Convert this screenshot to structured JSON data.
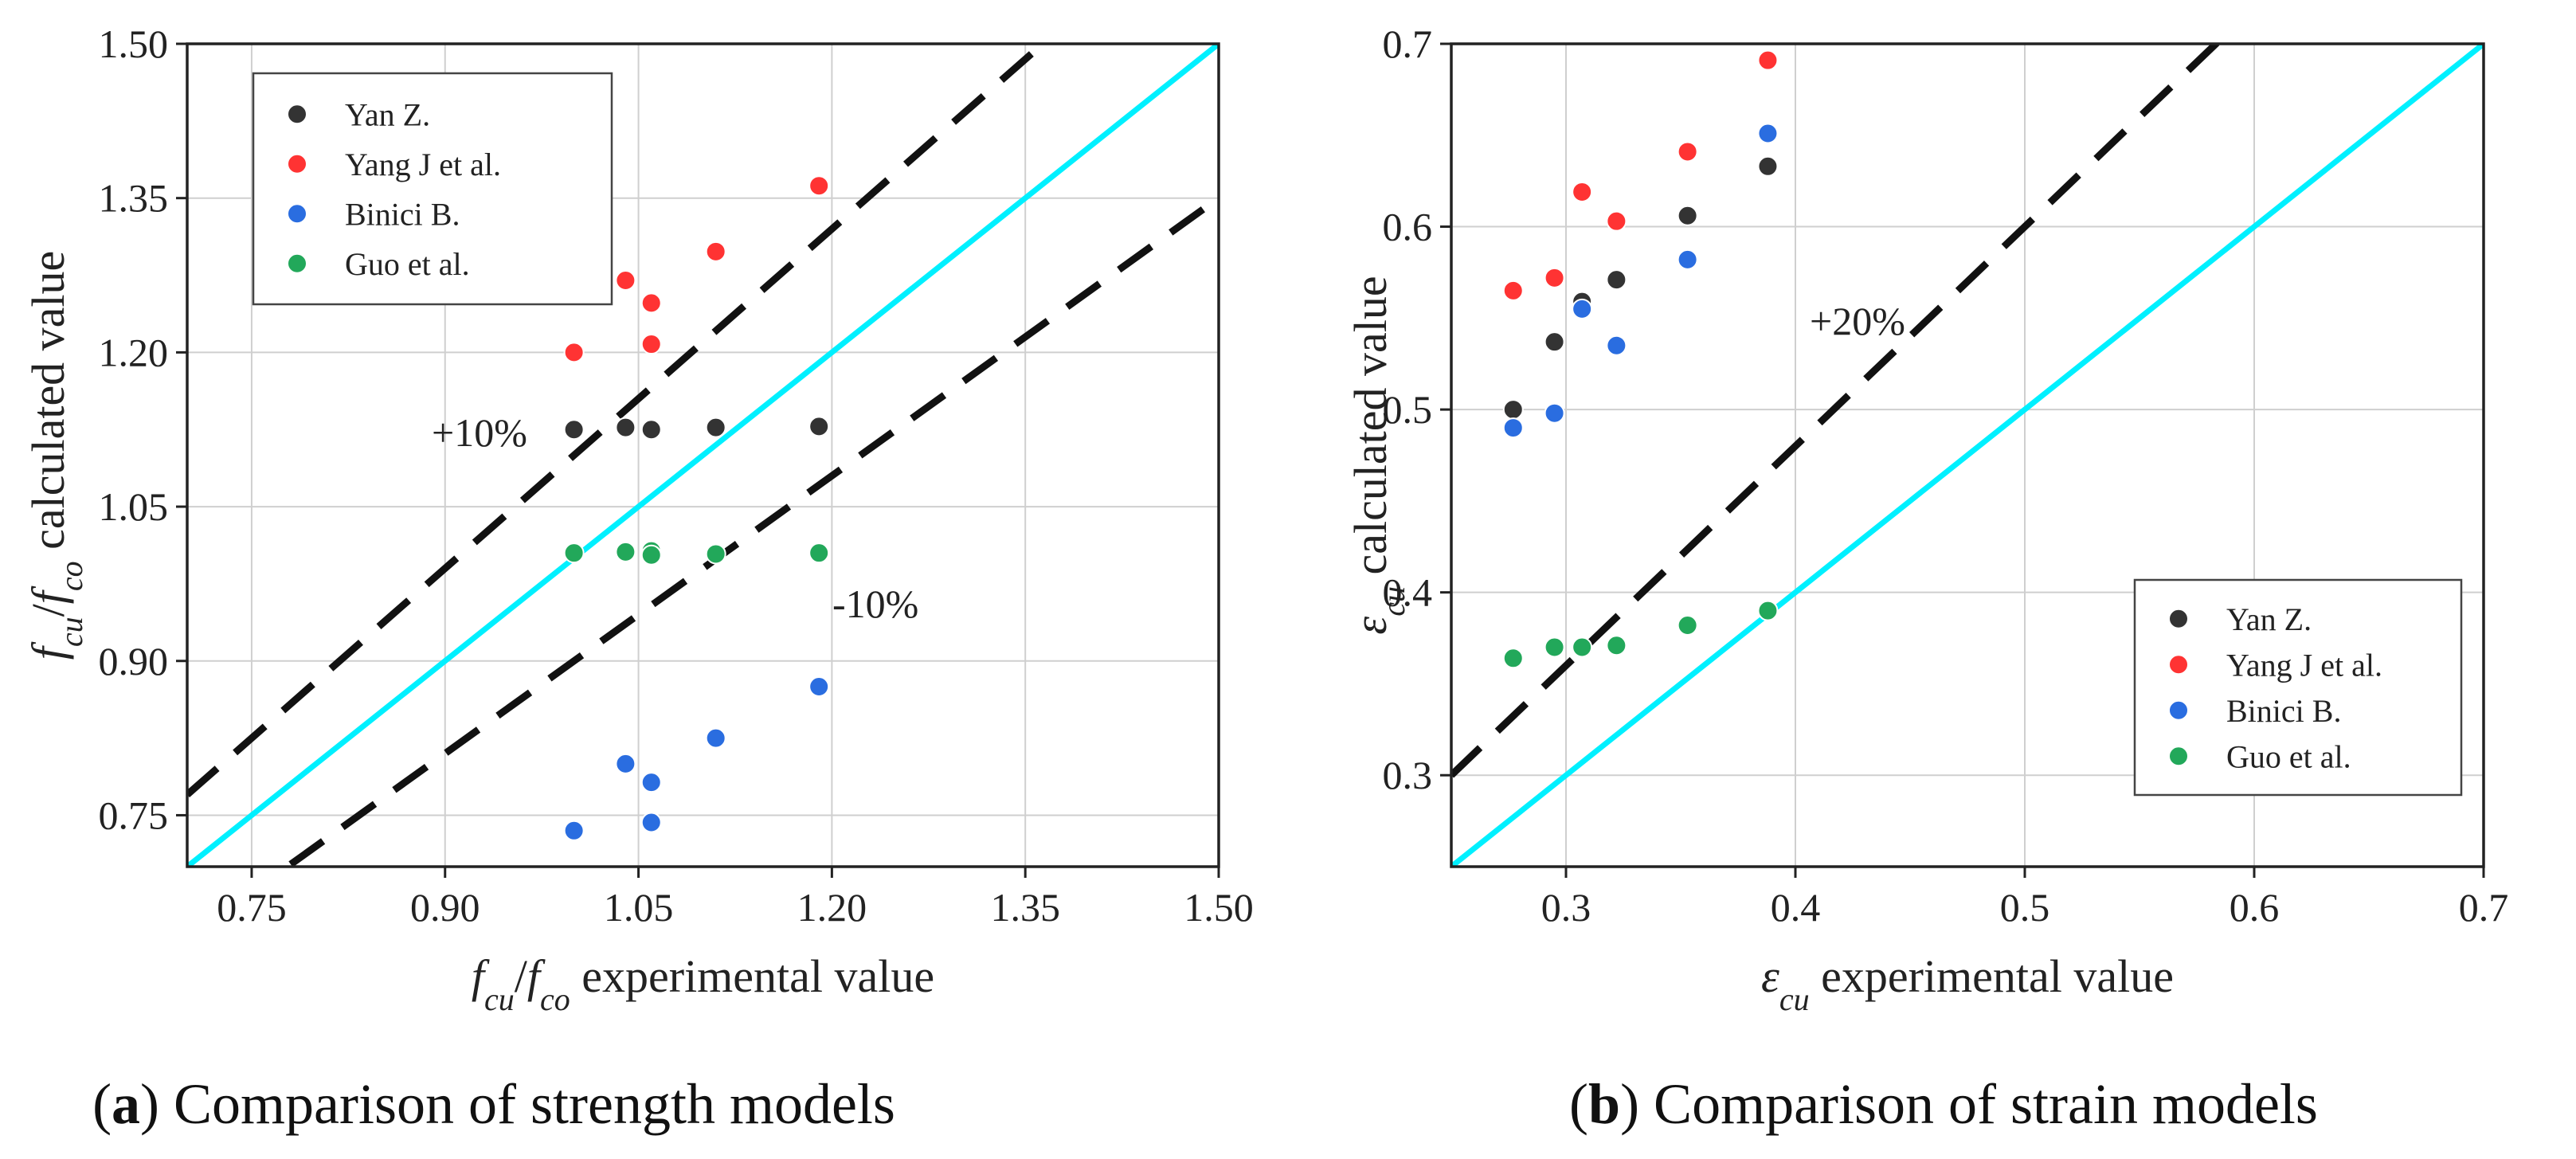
{
  "chart_data": [
    {
      "type": "scatter",
      "id": "a",
      "xlim": [
        0.7,
        1.5
      ],
      "ylim": [
        0.7,
        1.5
      ],
      "xticks": [
        "0.75",
        "0.90",
        "1.05",
        "1.20",
        "1.35",
        "1.50"
      ],
      "yticks": [
        "0.75",
        "0.90",
        "1.05",
        "1.20",
        "1.35",
        "1.50"
      ],
      "xticks_values": [
        0.75,
        0.9,
        1.05,
        1.2,
        1.35,
        1.5
      ],
      "yticks_values": [
        0.75,
        0.9,
        1.05,
        1.2,
        1.35,
        1.5
      ],
      "xlabel": {
        "var": "f",
        "sub1": "cu",
        "slash": "/",
        "var2": "f",
        "sub2": "co",
        "rest": " experimental value"
      },
      "ylabel": {
        "var": "f",
        "sub1": "cu",
        "slash": "/",
        "var2": "f",
        "sub2": "co",
        "rest": " calculated value"
      },
      "grid": true,
      "legend_position": "top-left",
      "reference_line": {
        "label": "y = x",
        "color": "#00f0ff"
      },
      "bounds": [
        {
          "label": "+10%",
          "factor": 1.1
        },
        {
          "label": "-10%",
          "factor": 0.9
        }
      ],
      "annotations": [
        "+10%",
        "-10%"
      ],
      "series": [
        {
          "name": "Yan Z.",
          "color": "#333333",
          "x": [
            1.0,
            1.04,
            1.06,
            1.11,
            1.19
          ],
          "y": [
            1.125,
            1.127,
            1.125,
            1.127,
            1.128
          ]
        },
        {
          "name": "Yang J et al.",
          "color": "#ff3333",
          "x": [
            1.0,
            1.04,
            1.06,
            1.06,
            1.11,
            1.19
          ],
          "y": [
            1.2,
            1.27,
            1.248,
            1.208,
            1.298,
            1.362
          ]
        },
        {
          "name": "Binici B.",
          "color": "#2a6de0",
          "x": [
            1.0,
            1.04,
            1.06,
            1.06,
            1.11,
            1.19
          ],
          "y": [
            0.735,
            0.8,
            0.782,
            0.743,
            0.825,
            0.875
          ]
        },
        {
          "name": "Guo et al.",
          "color": "#22a85a",
          "x": [
            1.0,
            1.04,
            1.06,
            1.06,
            1.11,
            1.19
          ],
          "y": [
            1.005,
            1.006,
            1.007,
            1.003,
            1.004,
            1.005
          ]
        }
      ]
    },
    {
      "type": "scatter",
      "id": "b",
      "xlim": [
        0.25,
        0.7
      ],
      "ylim": [
        0.25,
        0.7
      ],
      "xticks": [
        "0.3",
        "0.4",
        "0.5",
        "0.6",
        "0.7"
      ],
      "yticks": [
        "0.3",
        "0.4",
        "0.5",
        "0.6",
        "0.7"
      ],
      "xticks_values": [
        0.3,
        0.4,
        0.5,
        0.6,
        0.7
      ],
      "yticks_values": [
        0.3,
        0.4,
        0.5,
        0.6,
        0.7
      ],
      "xlabel": {
        "var": "ε",
        "sub1": "cu",
        "rest": " experimental value"
      },
      "ylabel": {
        "var": "ε",
        "sub1": "cu",
        "rest": " calculated value"
      },
      "grid": true,
      "legend_position": "bottom-right",
      "reference_line": {
        "label": "y = x",
        "color": "#00f0ff"
      },
      "bounds": [
        {
          "label": "+20%",
          "factor": 1.2
        }
      ],
      "annotations": [
        "+20%"
      ],
      "series": [
        {
          "name": "Yan Z.",
          "color": "#333333",
          "x": [
            0.277,
            0.295,
            0.307,
            0.322,
            0.353,
            0.388
          ],
          "y": [
            0.5,
            0.537,
            0.559,
            0.571,
            0.606,
            0.633
          ]
        },
        {
          "name": "Yang J et al.",
          "color": "#ff3333",
          "x": [
            0.277,
            0.295,
            0.307,
            0.322,
            0.353,
            0.388
          ],
          "y": [
            0.565,
            0.572,
            0.619,
            0.603,
            0.641,
            0.691
          ]
        },
        {
          "name": "Binici B.",
          "color": "#2a6de0",
          "x": [
            0.277,
            0.295,
            0.307,
            0.322,
            0.353,
            0.388
          ],
          "y": [
            0.49,
            0.498,
            0.555,
            0.535,
            0.582,
            0.651
          ]
        },
        {
          "name": "Guo et al.",
          "color": "#22a85a",
          "x": [
            0.277,
            0.295,
            0.307,
            0.322,
            0.353,
            0.388
          ],
          "y": [
            0.364,
            0.37,
            0.37,
            0.371,
            0.382,
            0.39
          ]
        }
      ]
    }
  ],
  "captions": [
    {
      "letter": "a",
      "text": " Comparison of strength models"
    },
    {
      "letter": "b",
      "text": " Comparison of strain models"
    }
  ]
}
